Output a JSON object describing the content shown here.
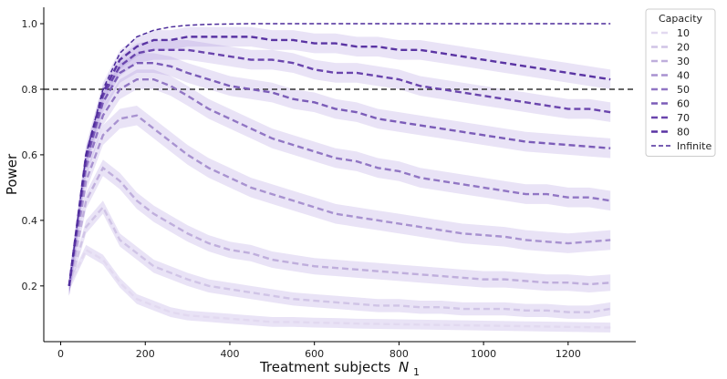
{
  "chart_data": {
    "type": "line",
    "title": "",
    "xlabel": "Treatment subjects",
    "xlabel_symbol": "N",
    "xlabel_subscript": "1",
    "ylabel": "Power",
    "xlim": [
      -40,
      1360
    ],
    "ylim": [
      0.03,
      1.05
    ],
    "xticks": [
      0,
      200,
      400,
      600,
      800,
      1000,
      1200
    ],
    "yticks": [
      0.2,
      0.4,
      0.6,
      0.8,
      1.0
    ],
    "reference_line": {
      "y": 0.8,
      "style": "dashed",
      "color": "#333333"
    },
    "x": [
      20,
      60,
      100,
      140,
      180,
      220,
      260,
      300,
      350,
      400,
      450,
      500,
      550,
      600,
      650,
      700,
      750,
      800,
      850,
      900,
      950,
      1000,
      1050,
      1100,
      1150,
      1200,
      1250,
      1300
    ],
    "legend": {
      "title": "Capacity",
      "position": "outside-right"
    },
    "series": [
      {
        "name": "10",
        "color": "#e2d9f0",
        "band_width": 0.015,
        "values": [
          0.2,
          0.31,
          0.28,
          0.21,
          0.16,
          0.14,
          0.12,
          0.11,
          0.105,
          0.1,
          0.095,
          0.09,
          0.09,
          0.088,
          0.087,
          0.085,
          0.084,
          0.083,
          0.082,
          0.081,
          0.08,
          0.079,
          0.078,
          0.077,
          0.076,
          0.075,
          0.074,
          0.073
        ]
      },
      {
        "name": "20",
        "color": "#d0c4e6",
        "band_width": 0.02,
        "values": [
          0.2,
          0.38,
          0.44,
          0.34,
          0.3,
          0.26,
          0.24,
          0.22,
          0.2,
          0.19,
          0.18,
          0.17,
          0.16,
          0.155,
          0.15,
          0.145,
          0.14,
          0.14,
          0.135,
          0.135,
          0.13,
          0.13,
          0.13,
          0.125,
          0.125,
          0.12,
          0.12,
          0.13
        ]
      },
      {
        "name": "30",
        "color": "#bfaedc",
        "band_width": 0.025,
        "values": [
          0.2,
          0.46,
          0.56,
          0.52,
          0.46,
          0.42,
          0.39,
          0.36,
          0.33,
          0.31,
          0.3,
          0.28,
          0.27,
          0.26,
          0.255,
          0.25,
          0.245,
          0.24,
          0.235,
          0.23,
          0.225,
          0.22,
          0.22,
          0.215,
          0.21,
          0.21,
          0.205,
          0.21
        ]
      },
      {
        "name": "40",
        "color": "#a892d0",
        "band_width": 0.03,
        "values": [
          0.2,
          0.52,
          0.66,
          0.71,
          0.72,
          0.68,
          0.64,
          0.6,
          0.56,
          0.53,
          0.5,
          0.48,
          0.46,
          0.44,
          0.42,
          0.41,
          0.4,
          0.39,
          0.38,
          0.37,
          0.36,
          0.355,
          0.35,
          0.34,
          0.335,
          0.33,
          0.335,
          0.34
        ]
      },
      {
        "name": "50",
        "color": "#9176c4",
        "band_width": 0.03,
        "values": [
          0.2,
          0.56,
          0.72,
          0.8,
          0.83,
          0.83,
          0.81,
          0.78,
          0.74,
          0.71,
          0.68,
          0.65,
          0.63,
          0.61,
          0.59,
          0.58,
          0.56,
          0.55,
          0.53,
          0.52,
          0.51,
          0.5,
          0.49,
          0.48,
          0.48,
          0.47,
          0.47,
          0.46
        ]
      },
      {
        "name": "60",
        "color": "#7b5cb8",
        "band_width": 0.03,
        "values": [
          0.2,
          0.58,
          0.76,
          0.85,
          0.88,
          0.88,
          0.87,
          0.85,
          0.83,
          0.81,
          0.8,
          0.79,
          0.77,
          0.76,
          0.74,
          0.73,
          0.71,
          0.7,
          0.69,
          0.68,
          0.67,
          0.66,
          0.65,
          0.64,
          0.635,
          0.63,
          0.625,
          0.62
        ]
      },
      {
        "name": "70",
        "color": "#6a45ad",
        "band_width": 0.03,
        "values": [
          0.2,
          0.59,
          0.78,
          0.87,
          0.91,
          0.92,
          0.92,
          0.92,
          0.91,
          0.9,
          0.89,
          0.89,
          0.88,
          0.86,
          0.85,
          0.85,
          0.84,
          0.83,
          0.81,
          0.8,
          0.79,
          0.78,
          0.77,
          0.76,
          0.75,
          0.74,
          0.74,
          0.73
        ]
      },
      {
        "name": "80",
        "color": "#5a34a3",
        "band_width": 0.03,
        "values": [
          0.2,
          0.6,
          0.79,
          0.89,
          0.93,
          0.95,
          0.95,
          0.96,
          0.96,
          0.96,
          0.96,
          0.95,
          0.95,
          0.94,
          0.94,
          0.93,
          0.93,
          0.92,
          0.92,
          0.91,
          0.9,
          0.89,
          0.88,
          0.87,
          0.86,
          0.85,
          0.84,
          0.83
        ]
      },
      {
        "name": "Infinite",
        "color": "#4b2a9a",
        "band_width": 0,
        "thin": true,
        "values": [
          0.2,
          0.6,
          0.8,
          0.91,
          0.96,
          0.98,
          0.99,
          0.995,
          0.998,
          0.999,
          1.0,
          1.0,
          1.0,
          1.0,
          1.0,
          1.0,
          1.0,
          1.0,
          1.0,
          1.0,
          1.0,
          1.0,
          1.0,
          1.0,
          1.0,
          1.0,
          1.0,
          1.0
        ]
      }
    ]
  }
}
